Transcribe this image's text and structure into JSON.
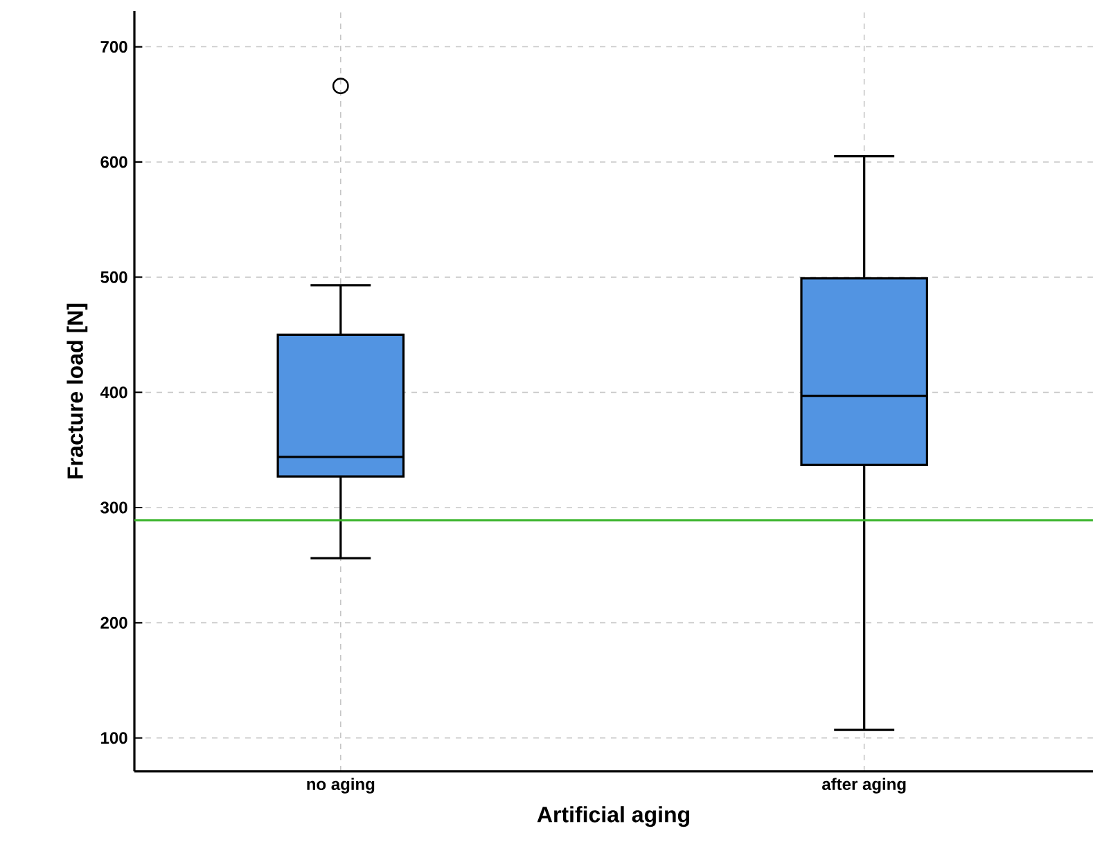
{
  "chart_data": {
    "type": "box",
    "xlabel": "Artificial aging",
    "ylabel": "Fracture load [N]",
    "categories": [
      "no aging",
      "after aging"
    ],
    "series": [
      {
        "color": "#5294e2",
        "boxes": [
          {
            "low": 256,
            "q1": 327,
            "median": 344,
            "q3": 450,
            "high": 493,
            "outliers": [
              666
            ]
          },
          {
            "low": 107,
            "q1": 337,
            "median": 397,
            "q3": 499,
            "high": 605
          }
        ]
      }
    ],
    "ylim": [
      71,
      731
    ],
    "yticks": [
      100,
      200,
      300,
      400,
      500,
      600,
      700
    ],
    "grid": true,
    "marker": "circle",
    "ref_lines": [
      {
        "axis": "y",
        "value": 289,
        "color": "#3cb52d"
      }
    ]
  }
}
